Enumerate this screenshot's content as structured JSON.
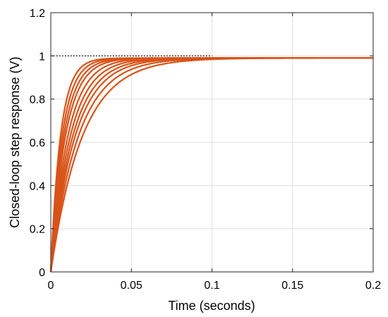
{
  "chart_data": {
    "type": "line",
    "title": "",
    "xlabel": "Time (seconds)",
    "ylabel": "Closed-loop step response (V)",
    "xlim": [
      0,
      0.2
    ],
    "ylim": [
      0,
      1.2
    ],
    "xticks": [
      0,
      0.05,
      0.1,
      0.15,
      0.2
    ],
    "xtick_labels": [
      "0",
      "0.05",
      "0.1",
      "0.15",
      "0.2"
    ],
    "yticks": [
      0,
      0.2,
      0.4,
      0.6,
      0.8,
      1,
      1.2
    ],
    "ytick_labels": [
      "0",
      "0.2",
      "0.4",
      "0.6",
      "0.8",
      "1",
      "1.2"
    ],
    "grid": true,
    "legend": "none",
    "series_color": "#d95319",
    "reference_color": "#000000",
    "reference_line": {
      "y": 1.0,
      "x_end": 0.1,
      "style": "dotted"
    },
    "final_value": 0.99,
    "series": [
      {
        "time_constant": 0.006
      },
      {
        "time_constant": 0.007
      },
      {
        "time_constant": 0.008
      },
      {
        "time_constant": 0.009
      },
      {
        "time_constant": 0.0105
      },
      {
        "time_constant": 0.012
      },
      {
        "time_constant": 0.0135
      },
      {
        "time_constant": 0.015
      },
      {
        "time_constant": 0.017
      },
      {
        "time_constant": 0.0195
      }
    ]
  }
}
